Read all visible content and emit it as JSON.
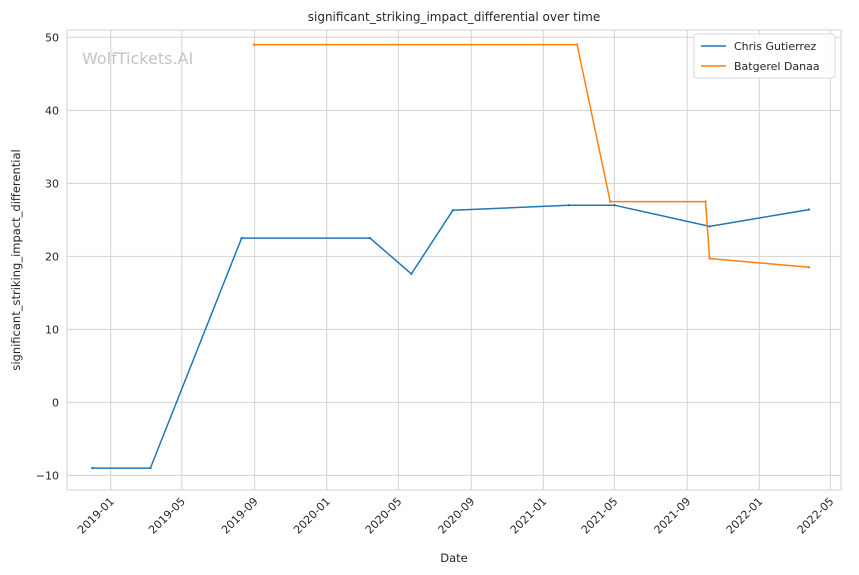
{
  "watermark": "WolfTickets.AI",
  "chart_data": {
    "type": "line",
    "title": "significant_striking_impact_differential over time",
    "xlabel": "Date",
    "ylabel": "significant_striking_impact_differential",
    "x_ticks": [
      "2019-01",
      "2019-05",
      "2019-09",
      "2020-01",
      "2020-05",
      "2020-09",
      "2021-01",
      "2021-05",
      "2021-09",
      "2022-01",
      "2022-05"
    ],
    "y_ticks": [
      -10,
      0,
      10,
      20,
      30,
      40,
      50
    ],
    "xlim": [
      "2018-10-19",
      "2022-05-19"
    ],
    "ylim": [
      -12,
      51
    ],
    "grid": true,
    "legend": {
      "position": "top-right"
    },
    "series": [
      {
        "name": "Chris Gutierrez",
        "color": "#1f77b4",
        "points": [
          [
            "2018-12-01",
            -9.0
          ],
          [
            "2019-03-09",
            -9.0
          ],
          [
            "2019-08-10",
            22.5
          ],
          [
            "2020-03-14",
            22.5
          ],
          [
            "2020-05-23",
            17.6
          ],
          [
            "2020-08-01",
            26.3
          ],
          [
            "2021-02-13",
            27.0
          ],
          [
            "2021-05-01",
            27.0
          ],
          [
            "2021-10-09",
            24.1
          ],
          [
            "2022-03-26",
            26.4
          ]
        ]
      },
      {
        "name": "Batgerel Danaa",
        "color": "#ff7f0e",
        "points": [
          [
            "2019-08-31",
            49.0
          ],
          [
            "2021-02-27",
            49.0
          ],
          [
            "2021-04-24",
            27.5
          ],
          [
            "2021-10-02",
            27.5
          ],
          [
            "2021-10-09",
            19.7
          ],
          [
            "2022-03-26",
            18.5
          ]
        ]
      }
    ]
  }
}
